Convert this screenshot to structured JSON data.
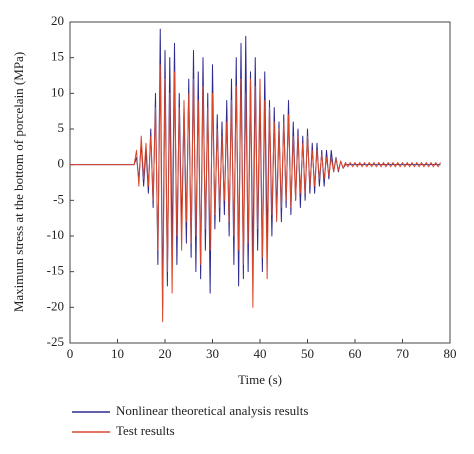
{
  "chart_data": {
    "type": "line",
    "xlabel": "Time (s)",
    "ylabel": "Maximum stress at the bottom of porcelain (MPa)",
    "xlim": [
      0,
      80
    ],
    "xticks": [
      0,
      10,
      20,
      30,
      40,
      50,
      60,
      70,
      80
    ],
    "ylim": [
      -25,
      20
    ],
    "yticks": [
      -25,
      -20,
      -15,
      -10,
      -5,
      0,
      5,
      10,
      15,
      20
    ],
    "legend": "bottom",
    "x": [
      0,
      0.5,
      1,
      1.5,
      2,
      2.5,
      3,
      3.5,
      4,
      4.5,
      5,
      5.5,
      6,
      6.5,
      7,
      7.5,
      8,
      8.5,
      9,
      9.5,
      10,
      10.5,
      11,
      11.5,
      12,
      12.5,
      13,
      13.5,
      14,
      14.5,
      15,
      15.5,
      16,
      16.5,
      17,
      17.5,
      18,
      18.5,
      19,
      19.5,
      20,
      20.5,
      21,
      21.5,
      22,
      22.5,
      23,
      23.5,
      24,
      24.5,
      25,
      25.5,
      26,
      26.5,
      27,
      27.5,
      28,
      28.5,
      29,
      29.5,
      30,
      30.5,
      31,
      31.5,
      32,
      32.5,
      33,
      33.5,
      34,
      34.5,
      35,
      35.5,
      36,
      36.5,
      37,
      37.5,
      38,
      38.5,
      39,
      39.5,
      40,
      40.5,
      41,
      41.5,
      42,
      42.5,
      43,
      43.5,
      44,
      44.5,
      45,
      45.5,
      46,
      46.5,
      47,
      47.5,
      48,
      48.5,
      49,
      49.5,
      50,
      50.5,
      51,
      51.5,
      52,
      52.5,
      53,
      53.5,
      54,
      54.5,
      55,
      55.5,
      56,
      56.5,
      57,
      57.5,
      58,
      58.5,
      59,
      59.5,
      60,
      60.5,
      61,
      61.5,
      62,
      62.5,
      63,
      63.5,
      64,
      64.5,
      65,
      65.5,
      66,
      66.5,
      67,
      67.5,
      68,
      68.5,
      69,
      69.5,
      70,
      70.5,
      71,
      71.5,
      72,
      72.5,
      73,
      73.5,
      74,
      74.5,
      75,
      75.5,
      76,
      76.5,
      77,
      77.5,
      78
    ],
    "series": [
      {
        "name": "Nonlinear theoretical analysis results",
        "color": "#2e2a8f",
        "values": [
          0,
          0,
          0,
          0,
          0,
          0,
          0,
          0,
          0,
          0,
          0,
          0,
          0,
          0,
          0,
          0,
          0,
          0,
          0,
          0,
          0,
          0,
          0,
          0,
          0,
          0,
          0,
          0,
          1,
          -2,
          3,
          -3,
          2,
          -4,
          5,
          -6,
          10,
          -14,
          19,
          -20,
          16,
          -17,
          15,
          -12,
          17,
          -14,
          10,
          -9,
          8,
          -11,
          12,
          -13,
          16,
          -15,
          13,
          -16,
          15,
          -12,
          10,
          -18,
          14,
          -9,
          7,
          -8,
          6,
          -7,
          9,
          -10,
          12,
          -14,
          15,
          -17,
          17,
          -16,
          18,
          -15,
          13,
          -14,
          15,
          -12,
          10,
          -15,
          13,
          -11,
          9,
          -10,
          8,
          -7,
          6,
          -8,
          7,
          -6,
          9,
          -7,
          6,
          -5,
          5,
          -6,
          4,
          -5,
          5,
          -4,
          3,
          -4,
          3,
          -3,
          2,
          -3,
          2,
          -2,
          2,
          -1,
          1,
          -1,
          0.5,
          -0.5,
          0,
          0,
          0,
          0,
          0,
          0,
          0,
          0,
          0,
          0,
          0,
          0,
          0,
          0,
          0,
          0,
          0,
          0,
          0,
          0,
          0,
          0,
          0,
          0,
          0,
          0,
          0,
          0,
          0,
          0,
          0,
          0,
          0,
          0,
          0,
          0,
          0,
          0,
          0,
          0,
          0
        ]
      },
      {
        "name": "Test results",
        "color": "#d9482b",
        "values": [
          0,
          0,
          0,
          0,
          0,
          0,
          0,
          0,
          0,
          0,
          0,
          0,
          0,
          0,
          0,
          0,
          0,
          0,
          0,
          0,
          0,
          0,
          0,
          0,
          0,
          0,
          0,
          0,
          2,
          -3,
          4,
          -2,
          3,
          -3,
          4,
          -5,
          8,
          -12,
          14,
          -22,
          12,
          -15,
          10,
          -18,
          13,
          -10,
          8,
          -12,
          9,
          -8,
          10,
          -11,
          12,
          -10,
          9,
          -14,
          11,
          -9,
          8,
          -12,
          10,
          -7,
          5,
          -6,
          4,
          -5,
          6,
          -8,
          9,
          -10,
          11,
          -12,
          12,
          -14,
          10,
          -11,
          12,
          -20,
          11,
          -9,
          12,
          -13,
          9,
          -16,
          8,
          -7,
          6,
          -8,
          5,
          -6,
          6,
          -5,
          7,
          -6,
          4,
          -5,
          4,
          -4,
          3,
          -4,
          4,
          -3,
          2,
          -3,
          2,
          -2,
          1.5,
          -2,
          1,
          -1.5,
          1,
          -1,
          0.8,
          -0.8,
          0.5,
          -0.5,
          0.3,
          -0.3,
          0.3,
          -0.3,
          0.3,
          -0.3,
          0.3,
          -0.3,
          0.3,
          -0.3,
          0.3,
          -0.3,
          0.3,
          -0.3,
          0.3,
          -0.3,
          0.3,
          -0.3,
          0.3,
          -0.3,
          0.3,
          -0.3,
          0.3,
          -0.3,
          0.3,
          -0.3,
          0.3,
          -0.3,
          0.3,
          -0.3,
          0.3,
          -0.3,
          0.3,
          -0.3,
          0.3,
          -0.3,
          0.3,
          -0.3,
          0.3,
          -0.3,
          0.3
        ]
      }
    ]
  }
}
